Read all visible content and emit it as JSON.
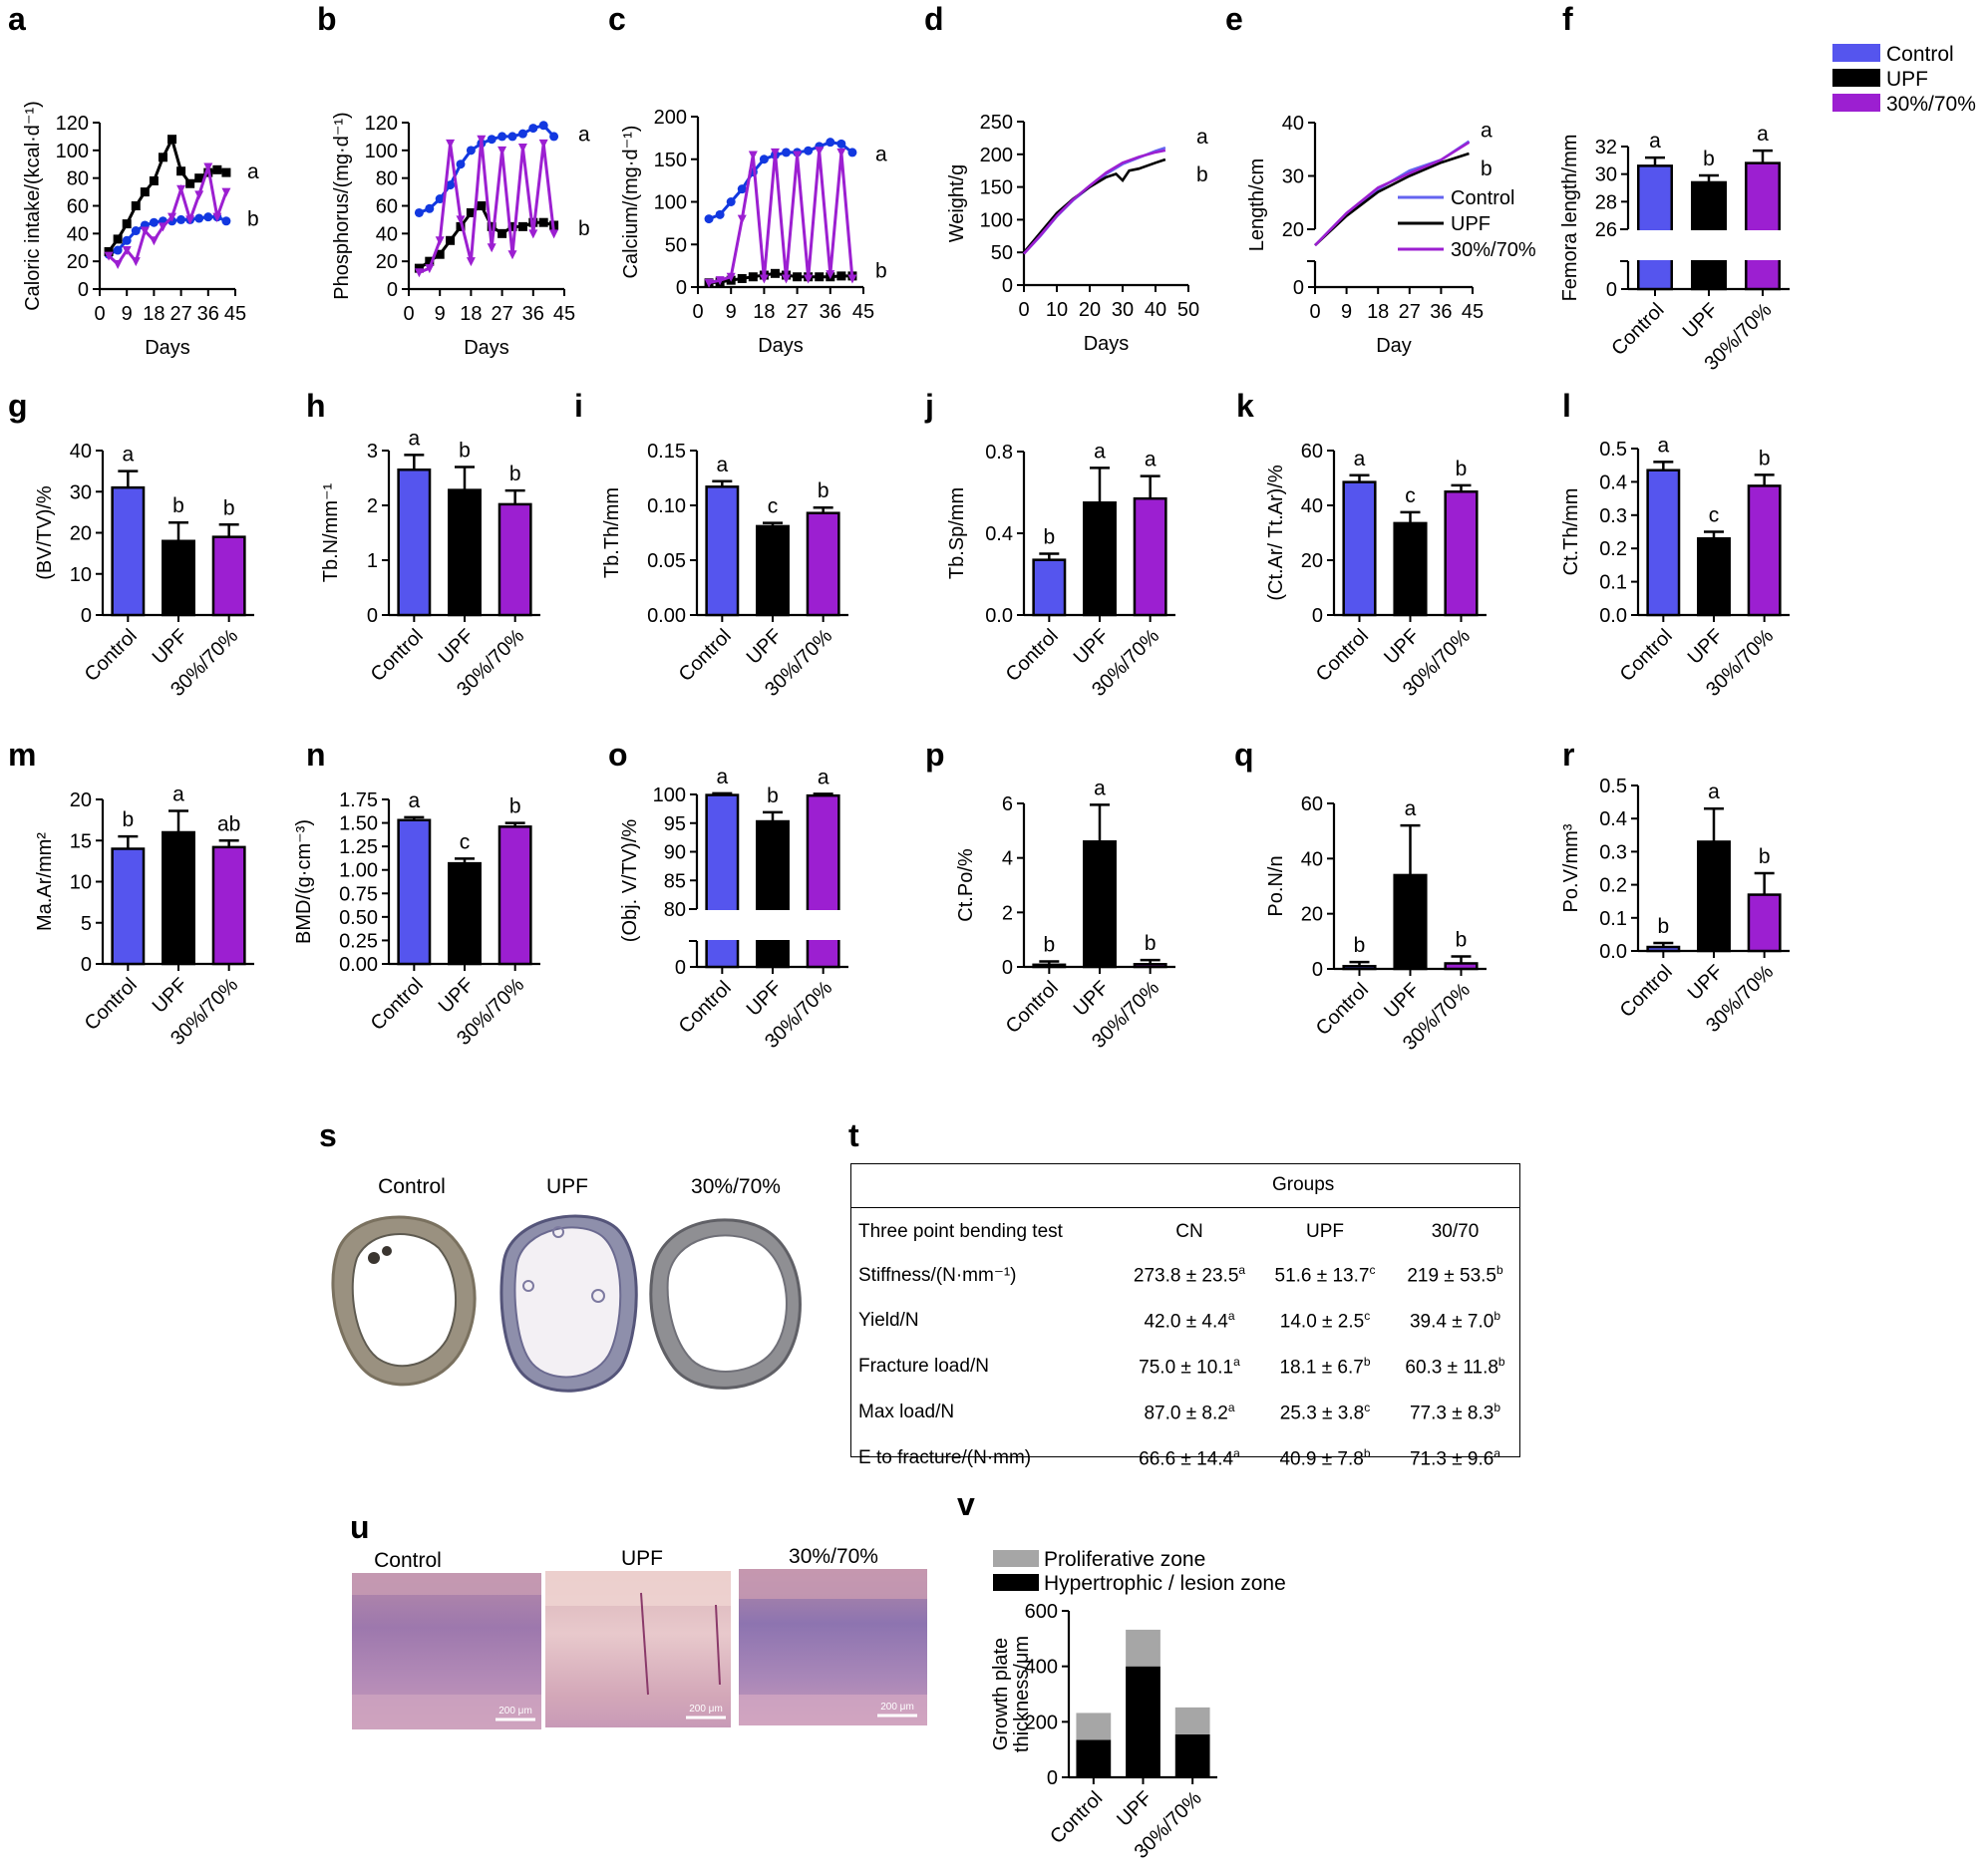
{
  "colors": {
    "control": "#5555ee",
    "upf": "#000000",
    "mix": "#9c1fd1",
    "prolif": "#a6a6a6",
    "hyper": "#000000",
    "points": "#1238e0"
  },
  "groups": [
    "Control",
    "UPF",
    "30%/70%"
  ],
  "legend": {
    "entries": [
      "Control",
      "UPF",
      "30%/70%"
    ]
  },
  "chart_data": [
    {
      "id": "a",
      "type": "line",
      "ylabel": "Caloric intake/(kcal·d⁻¹)",
      "xlabel": "Days",
      "xlim": [
        0,
        45
      ],
      "ylim": [
        0,
        120
      ],
      "xticks": [
        0,
        9,
        18,
        27,
        36,
        45
      ],
      "yticks": [
        0,
        20,
        40,
        60,
        80,
        100,
        120
      ],
      "series": [
        {
          "name": "Control",
          "x": [
            3,
            6,
            9,
            12,
            15,
            18,
            21,
            24,
            27,
            30,
            33,
            36,
            39,
            42
          ],
          "y": [
            25,
            28,
            35,
            42,
            46,
            48,
            49,
            49,
            50,
            50,
            51,
            52,
            52,
            49
          ]
        },
        {
          "name": "UPF",
          "x": [
            3,
            6,
            9,
            12,
            15,
            18,
            21,
            24,
            27,
            30,
            33,
            36,
            39,
            42
          ],
          "y": [
            27,
            36,
            47,
            60,
            70,
            78,
            95,
            108,
            85,
            76,
            80,
            84,
            86,
            84
          ]
        },
        {
          "name": "30%/70%",
          "x": [
            3,
            6,
            9,
            12,
            15,
            18,
            21,
            24,
            27,
            30,
            33,
            36,
            39,
            42
          ],
          "y": [
            24,
            18,
            28,
            20,
            42,
            35,
            45,
            52,
            72,
            50,
            68,
            88,
            52,
            70
          ]
        }
      ],
      "letters": [
        "a",
        "b"
      ]
    },
    {
      "id": "b",
      "type": "line",
      "ylabel": "Phosphorus/(mg·d⁻¹)",
      "xlabel": "Days",
      "xlim": [
        0,
        45
      ],
      "ylim": [
        0,
        120
      ],
      "xticks": [
        0,
        9,
        18,
        27,
        36,
        45
      ],
      "yticks": [
        0,
        20,
        40,
        60,
        80,
        100,
        120
      ],
      "series": [
        {
          "name": "Control",
          "x": [
            3,
            6,
            9,
            12,
            15,
            18,
            21,
            24,
            27,
            30,
            33,
            36,
            39,
            42
          ],
          "y": [
            55,
            58,
            65,
            75,
            90,
            100,
            105,
            108,
            110,
            110,
            112,
            116,
            118,
            110
          ]
        },
        {
          "name": "UPF",
          "x": [
            3,
            6,
            9,
            12,
            15,
            18,
            21,
            24,
            27,
            30,
            33,
            36,
            39,
            42
          ],
          "y": [
            15,
            20,
            25,
            35,
            45,
            55,
            60,
            45,
            40,
            45,
            45,
            48,
            48,
            46
          ]
        },
        {
          "name": "30%/70%",
          "x": [
            3,
            6,
            9,
            12,
            15,
            18,
            21,
            24,
            27,
            30,
            33,
            36,
            39,
            42
          ],
          "y": [
            12,
            15,
            35,
            105,
            50,
            20,
            108,
            30,
            100,
            25,
            102,
            40,
            105,
            40
          ]
        }
      ],
      "letters": [
        "a",
        "b"
      ]
    },
    {
      "id": "c",
      "type": "line",
      "ylabel": "Calcium/(mg·d⁻¹)",
      "xlabel": "Days",
      "xlim": [
        0,
        45
      ],
      "ylim": [
        0,
        200
      ],
      "xticks": [
        0,
        9,
        18,
        27,
        36,
        45
      ],
      "yticks": [
        0,
        50,
        100,
        150,
        200
      ],
      "series": [
        {
          "name": "Control",
          "x": [
            3,
            6,
            9,
            12,
            15,
            18,
            21,
            24,
            27,
            30,
            33,
            36,
            39,
            42
          ],
          "y": [
            80,
            85,
            100,
            115,
            135,
            150,
            155,
            158,
            158,
            160,
            165,
            170,
            168,
            158
          ]
        },
        {
          "name": "UPF",
          "x": [
            3,
            6,
            9,
            12,
            15,
            18,
            21,
            24,
            27,
            30,
            33,
            36,
            39,
            42
          ],
          "y": [
            5,
            6,
            8,
            10,
            12,
            14,
            16,
            14,
            12,
            12,
            12,
            12,
            13,
            13
          ]
        },
        {
          "name": "30%/70%",
          "x": [
            3,
            6,
            9,
            12,
            15,
            18,
            21,
            24,
            27,
            30,
            33,
            36,
            39,
            42
          ],
          "y": [
            5,
            8,
            12,
            80,
            155,
            10,
            158,
            10,
            155,
            10,
            160,
            15,
            158,
            10
          ]
        }
      ],
      "letters": [
        "a",
        "b"
      ]
    },
    {
      "id": "d",
      "type": "line",
      "ylabel": "Weight/g",
      "xlabel": "Days",
      "xlim": [
        0,
        50
      ],
      "ylim": [
        0,
        250
      ],
      "xticks": [
        0,
        10,
        20,
        30,
        40,
        50
      ],
      "yticks": [
        0,
        50,
        100,
        150,
        200,
        250
      ],
      "series": [
        {
          "name": "Control",
          "x": [
            0,
            5,
            10,
            15,
            20,
            25,
            30,
            35,
            40,
            43
          ],
          "y": [
            48,
            75,
            105,
            130,
            150,
            170,
            185,
            195,
            205,
            210
          ]
        },
        {
          "name": "UPF",
          "x": [
            0,
            5,
            10,
            15,
            20,
            25,
            28,
            30,
            32,
            35,
            40,
            43
          ],
          "y": [
            50,
            80,
            110,
            132,
            150,
            165,
            170,
            160,
            175,
            178,
            187,
            192
          ]
        },
        {
          "name": "30%/70%",
          "x": [
            0,
            5,
            10,
            15,
            20,
            25,
            30,
            35,
            40,
            43
          ],
          "y": [
            48,
            76,
            106,
            131,
            152,
            172,
            187,
            196,
            203,
            206
          ]
        }
      ],
      "letters": [
        "a",
        "b"
      ]
    },
    {
      "id": "e",
      "type": "line",
      "ylabel": "Length/cm",
      "xlabel": "Day",
      "xlim": [
        0,
        45
      ],
      "ylim": [
        0,
        40
      ],
      "xticks": [
        0,
        9,
        18,
        27,
        36,
        45
      ],
      "yticks": [
        0,
        20,
        30,
        40
      ],
      "series": [
        {
          "name": "Control",
          "x": [
            0,
            9,
            18,
            27,
            36,
            44
          ],
          "y": [
            17,
            23,
            27.5,
            31,
            33,
            36.5
          ]
        },
        {
          "name": "UPF",
          "x": [
            0,
            9,
            18,
            27,
            36,
            44
          ],
          "y": [
            17,
            22.5,
            27,
            30,
            32.5,
            34.2
          ]
        },
        {
          "name": "30%/70%",
          "x": [
            0,
            9,
            18,
            27,
            36,
            44
          ],
          "y": [
            17,
            23,
            27.8,
            30.5,
            33,
            36.3
          ]
        }
      ],
      "legend": [
        "Control",
        "UPF",
        "30%/70%"
      ],
      "letters": [
        "a",
        "b"
      ]
    },
    {
      "id": "f",
      "type": "bar",
      "ylabel": "Femora length/mm",
      "categories": [
        "Control",
        "UPF",
        "30%/70%"
      ],
      "values": [
        30.6,
        29.4,
        30.8
      ],
      "errors": [
        0.6,
        0.5,
        0.9
      ],
      "letters": [
        "a",
        "b",
        "a"
      ],
      "ylim": [
        0,
        32
      ],
      "yticks": [
        0,
        26,
        28,
        30,
        32
      ]
    },
    {
      "id": "g",
      "type": "bar",
      "ylabel": "(BV/TV)/%",
      "categories": [
        "Control",
        "UPF",
        "30%/70%"
      ],
      "values": [
        31,
        18,
        19
      ],
      "errors": [
        4,
        4.5,
        3
      ],
      "letters": [
        "a",
        "b",
        "b"
      ],
      "ylim": [
        0,
        40
      ],
      "yticks": [
        0,
        10,
        20,
        30,
        40
      ]
    },
    {
      "id": "h",
      "type": "bar",
      "ylabel": "Tb.N/mm⁻¹",
      "categories": [
        "Control",
        "UPF",
        "30%/70%"
      ],
      "values": [
        2.65,
        2.28,
        2.02
      ],
      "errors": [
        0.27,
        0.42,
        0.25
      ],
      "letters": [
        "a",
        "b",
        "b"
      ],
      "ylim": [
        0,
        3
      ],
      "yticks": [
        0,
        1,
        2,
        3
      ]
    },
    {
      "id": "i",
      "type": "bar",
      "ylabel": "Tb.Th/mm",
      "categories": [
        "Control",
        "UPF",
        "30%/70%"
      ],
      "values": [
        0.117,
        0.081,
        0.093
      ],
      "errors": [
        0.005,
        0.003,
        0.005
      ],
      "letters": [
        "a",
        "c",
        "b"
      ],
      "ylim": [
        0,
        0.15
      ],
      "yticks": [
        0.0,
        0.05,
        0.1,
        0.15
      ]
    },
    {
      "id": "j",
      "type": "bar",
      "ylabel": "Tb.Sp/mm",
      "categories": [
        "Control",
        "UPF",
        "30%/70%"
      ],
      "values": [
        0.27,
        0.55,
        0.57
      ],
      "errors": [
        0.03,
        0.17,
        0.11
      ],
      "letters": [
        "b",
        "a",
        "a"
      ],
      "ylim": [
        0,
        0.8
      ],
      "yticks": [
        0.0,
        0.4,
        0.8
      ]
    },
    {
      "id": "k",
      "type": "bar",
      "ylabel": "(Ct.Ar/ Tt.Ar)/%",
      "categories": [
        "Control",
        "UPF",
        "30%/70%"
      ],
      "values": [
        48.5,
        33.5,
        45
      ],
      "errors": [
        2.5,
        4,
        2.3
      ],
      "letters": [
        "a",
        "c",
        "b"
      ],
      "ylim": [
        0,
        60
      ],
      "yticks": [
        0,
        20,
        40,
        60
      ]
    },
    {
      "id": "l",
      "type": "bar",
      "ylabel": "Ct.Th/mm",
      "categories": [
        "Control",
        "UPF",
        "30%/70%"
      ],
      "values": [
        0.435,
        0.23,
        0.388
      ],
      "errors": [
        0.025,
        0.02,
        0.033
      ],
      "letters": [
        "a",
        "c",
        "b"
      ],
      "ylim": [
        0,
        0.5
      ],
      "yticks": [
        0.0,
        0.1,
        0.2,
        0.3,
        0.4,
        0.5
      ]
    },
    {
      "id": "m",
      "type": "bar",
      "ylabel": "Ma.Ar/mm²",
      "categories": [
        "Control",
        "UPF",
        "30%/70%"
      ],
      "values": [
        14,
        16,
        14.2
      ],
      "errors": [
        1.5,
        2.6,
        0.8
      ],
      "letters": [
        "b",
        "a",
        "ab"
      ],
      "ylim": [
        0,
        20
      ],
      "yticks": [
        0,
        5,
        10,
        15,
        20
      ]
    },
    {
      "id": "n",
      "type": "bar",
      "ylabel": "BMD/(g·cm⁻³)",
      "categories": [
        "Control",
        "UPF",
        "30%/70%"
      ],
      "values": [
        1.53,
        1.07,
        1.46
      ],
      "errors": [
        0.03,
        0.05,
        0.04
      ],
      "letters": [
        "a",
        "c",
        "b"
      ],
      "ylim": [
        0,
        1.75
      ],
      "yticks": [
        0.0,
        0.25,
        0.5,
        0.75,
        1.0,
        1.25,
        1.5,
        1.75
      ]
    },
    {
      "id": "o",
      "type": "bar",
      "ylabel": "(Obj. V/TV)/%",
      "categories": [
        "Control",
        "UPF",
        "30%/70%"
      ],
      "values": [
        99.9,
        95.3,
        99.8
      ],
      "errors": [
        0.3,
        1.6,
        0.3
      ],
      "letters": [
        "a",
        "b",
        "a"
      ],
      "ylim": [
        0,
        100
      ],
      "yticks": [
        0,
        80,
        85,
        90,
        95,
        100
      ]
    },
    {
      "id": "p",
      "type": "bar",
      "ylabel": "Ct.Po/%",
      "categories": [
        "Control",
        "UPF",
        "30%/70%"
      ],
      "values": [
        0.08,
        4.6,
        0.1
      ],
      "errors": [
        0.12,
        1.35,
        0.15
      ],
      "letters": [
        "b",
        "a",
        "b"
      ],
      "ylim": [
        0,
        6
      ],
      "yticks": [
        0,
        2,
        4,
        6
      ]
    },
    {
      "id": "q",
      "type": "bar",
      "ylabel": "Po.N/n",
      "categories": [
        "Control",
        "UPF",
        "30%/70%"
      ],
      "values": [
        1,
        34,
        2
      ],
      "errors": [
        1.5,
        18,
        2.5
      ],
      "letters": [
        "b",
        "a",
        "b"
      ],
      "ylim": [
        0,
        60
      ],
      "yticks": [
        0,
        20,
        40,
        60
      ]
    },
    {
      "id": "r",
      "type": "bar",
      "ylabel": "Po.V/mm³",
      "categories": [
        "Control",
        "UPF",
        "30%/70%"
      ],
      "values": [
        0.012,
        0.33,
        0.17
      ],
      "errors": [
        0.012,
        0.1,
        0.065
      ],
      "letters": [
        "b",
        "a",
        "b"
      ],
      "ylim": [
        0,
        0.5
      ],
      "yticks": [
        0.0,
        0.1,
        0.2,
        0.3,
        0.4,
        0.5
      ]
    },
    {
      "id": "v",
      "type": "stacked_bar",
      "ylabel": "Growth plate thickness/μm",
      "categories": [
        "Control",
        "UPF",
        "30%/70%"
      ],
      "series": [
        {
          "name": "Hypertrophic / lesion zone",
          "values": [
            135,
            400,
            155
          ]
        },
        {
          "name": "Proliferative zone",
          "values": [
            97,
            132,
            97
          ]
        }
      ],
      "ylim": [
        0,
        600
      ],
      "yticks": [
        0,
        200,
        400,
        600
      ]
    }
  ],
  "panel_s": {
    "letter": "s",
    "labels": [
      "Control",
      "UPF",
      "30%/70%"
    ]
  },
  "panel_t": {
    "letter": "t",
    "groups_header": "Groups",
    "columns": [
      "Three point bending test",
      "CN",
      "UPF",
      "30/70"
    ],
    "rows": [
      {
        "label": "Stiffness/(N·mm⁻¹)",
        "cn": "273.8 ± 23.5",
        "cn_sup": "a",
        "upf": "51.6 ± 13.7",
        "upf_sup": "c",
        "mix": "219 ± 53.5",
        "mix_sup": "b"
      },
      {
        "label": "Yield/N",
        "cn": "42.0 ± 4.4",
        "cn_sup": "a",
        "upf": "14.0 ± 2.5",
        "upf_sup": "c",
        "mix": "39.4 ± 7.0",
        "mix_sup": "b"
      },
      {
        "label": "Fracture load/N",
        "cn": "75.0 ± 10.1",
        "cn_sup": "a",
        "upf": "18.1 ± 6.7",
        "upf_sup": "b",
        "mix": "60.3 ± 11.8",
        "mix_sup": "b"
      },
      {
        "label": "Max load/N",
        "cn": "87.0 ± 8.2",
        "cn_sup": "a",
        "upf": "25.3 ± 3.8",
        "upf_sup": "c",
        "mix": "77.3 ± 8.3",
        "mix_sup": "b"
      },
      {
        "label": "E to fracture/(N·mm)",
        "cn": "66.6 ± 14.4",
        "cn_sup": "a",
        "upf": "40.9 ± 7.8",
        "upf_sup": "b",
        "mix": "71.3 ± 9.6",
        "mix_sup": "a"
      }
    ]
  },
  "panel_u": {
    "letter": "u",
    "labels": [
      "Control",
      "UPF",
      "30%/70%"
    ],
    "scale_bar": "200 μm"
  }
}
